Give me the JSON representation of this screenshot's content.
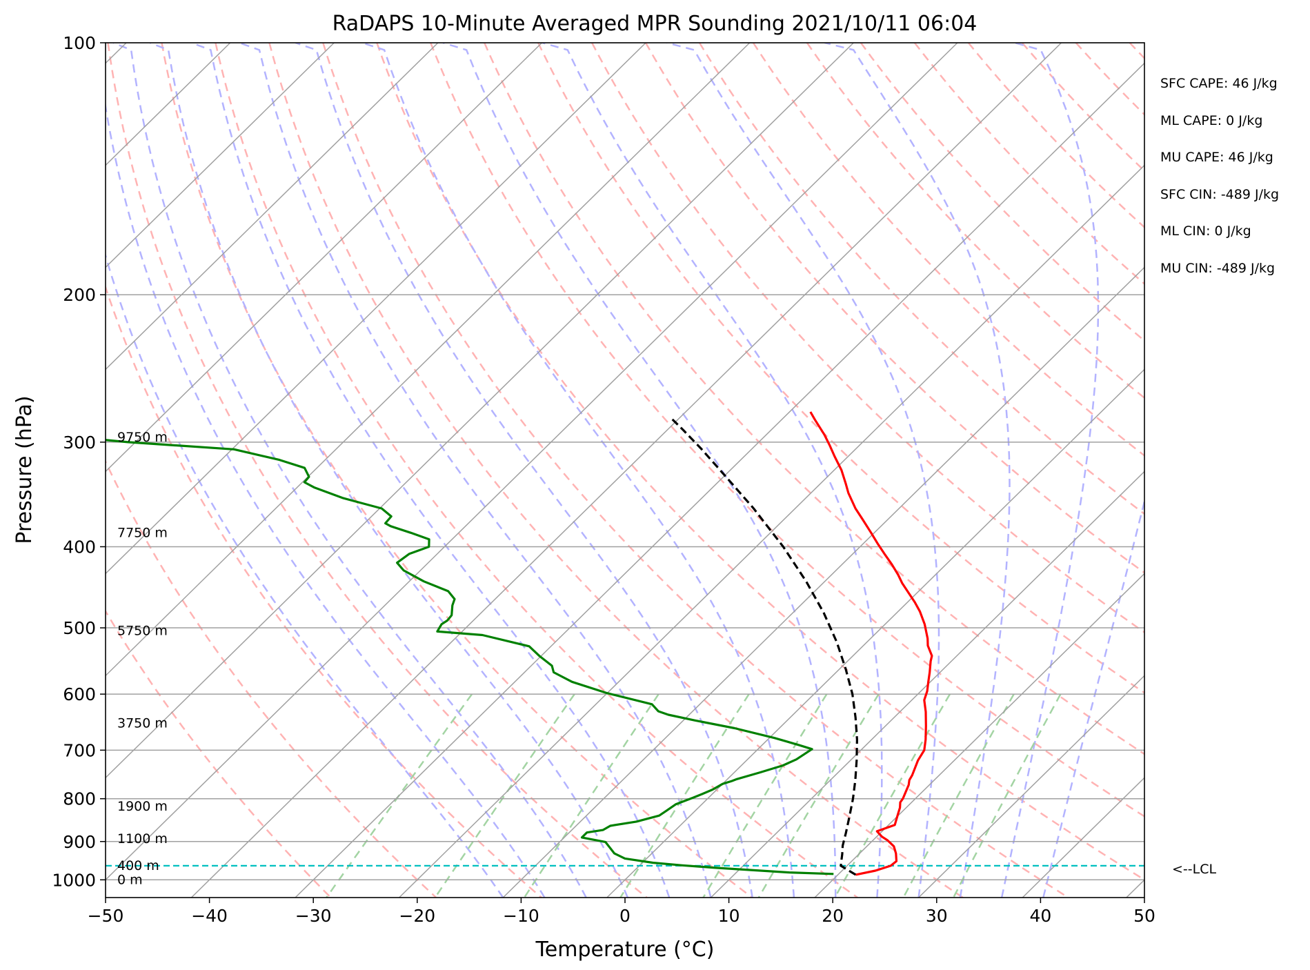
{
  "chart_data": {
    "type": "line",
    "title": "RaDAPS 10-Minute Averaged MPR Sounding 2021/10/11 06:04",
    "xlabel": "Temperature (°C)",
    "ylabel": "Pressure (hPa)",
    "xlim": [
      -50,
      50
    ],
    "ylim": [
      1050,
      100
    ],
    "y_scale": "log",
    "skew_per_decade_c": 82,
    "x_ticks": [
      "−50",
      "−40",
      "−30",
      "−20",
      "−10",
      "0",
      "10",
      "20",
      "30",
      "40",
      "50"
    ],
    "x_tick_values": [
      -50,
      -40,
      -30,
      -20,
      -10,
      0,
      10,
      20,
      30,
      40,
      50
    ],
    "y_ticks": [
      "1000",
      "900",
      "800",
      "700",
      "600",
      "500",
      "400",
      "300",
      "200",
      "100"
    ],
    "y_tick_values": [
      1000,
      900,
      800,
      700,
      600,
      500,
      400,
      300,
      200,
      100
    ],
    "grid": true,
    "series": [
      {
        "role": "temperature",
        "color": "#ff0000",
        "style": "solid",
        "points": [
          [
            21.7,
            986
          ],
          [
            23.2,
            975
          ],
          [
            24.2,
            962
          ],
          [
            24.3,
            950
          ],
          [
            23.5,
            930
          ],
          [
            22.6,
            912
          ],
          [
            21.4,
            897
          ],
          [
            20.5,
            888
          ],
          [
            19.5,
            875
          ],
          [
            20.6,
            860
          ],
          [
            20.0,
            840
          ],
          [
            19.7,
            830
          ],
          [
            19.4,
            820
          ],
          [
            18.9,
            808
          ],
          [
            18.8,
            800
          ],
          [
            18.0,
            770
          ],
          [
            17.6,
            760
          ],
          [
            17.4,
            750
          ],
          [
            16.5,
            720
          ],
          [
            16.1,
            700
          ],
          [
            15.2,
            680
          ],
          [
            13.9,
            655
          ],
          [
            12.5,
            630
          ],
          [
            11.2,
            610
          ],
          [
            10.6,
            595
          ],
          [
            9.8,
            580
          ],
          [
            9.0,
            565
          ],
          [
            8.0,
            548
          ],
          [
            7.6,
            540
          ],
          [
            6.2,
            525
          ],
          [
            5.5,
            515
          ],
          [
            3.8,
            495
          ],
          [
            2.1,
            478
          ],
          [
            0.7,
            466
          ],
          [
            -0.7,
            455
          ],
          [
            -2.4,
            442
          ],
          [
            -3.6,
            432
          ],
          [
            -5.2,
            420
          ],
          [
            -6.8,
            409
          ],
          [
            -8.7,
            396
          ],
          [
            -10.3,
            385
          ],
          [
            -12.6,
            370
          ],
          [
            -14.2,
            360
          ],
          [
            -16.4,
            345
          ],
          [
            -17.6,
            336
          ],
          [
            -19.3,
            324
          ],
          [
            -21.3,
            312
          ],
          [
            -22.8,
            303
          ],
          [
            -24.4,
            294
          ],
          [
            -26.8,
            282
          ],
          [
            -28.0,
            276
          ]
        ]
      },
      {
        "role": "dewpoint",
        "color": "#008000",
        "style": "solid",
        "points": [
          [
            19.5,
            984
          ],
          [
            15.1,
            980
          ],
          [
            10.9,
            973
          ],
          [
            7.3,
            967
          ],
          [
            4.1,
            961
          ],
          [
            1.0,
            954
          ],
          [
            -2.1,
            943
          ],
          [
            -3.6,
            930
          ],
          [
            -5.6,
            901
          ],
          [
            -8.3,
            890
          ],
          [
            -8.3,
            878
          ],
          [
            -7.0,
            872
          ],
          [
            -6.7,
            862
          ],
          [
            -4.6,
            852
          ],
          [
            -3.0,
            838
          ],
          [
            -2.8,
            828
          ],
          [
            -2.5,
            812
          ],
          [
            -1.5,
            798
          ],
          [
            -1.0,
            790
          ],
          [
            -0.4,
            780
          ],
          [
            0.0,
            768
          ],
          [
            0.6,
            762
          ],
          [
            0.9,
            758
          ],
          [
            2.5,
            744
          ],
          [
            4.0,
            730
          ],
          [
            4.7,
            718
          ],
          [
            5.2,
            698
          ],
          [
            3.5,
            690
          ],
          [
            0.5,
            677
          ],
          [
            -4.3,
            659
          ],
          [
            -8.9,
            645
          ],
          [
            -12.0,
            635
          ],
          [
            -13.3,
            629
          ],
          [
            -14.6,
            617
          ],
          [
            -20.1,
            598
          ],
          [
            -24.5,
            580
          ],
          [
            -27.2,
            565
          ],
          [
            -28.0,
            555
          ],
          [
            -30.2,
            540
          ],
          [
            -32.1,
            526
          ],
          [
            -37.7,
            510
          ],
          [
            -42.4,
            505
          ],
          [
            -42.7,
            495
          ],
          [
            -42.5,
            490
          ],
          [
            -42.6,
            483
          ],
          [
            -43.5,
            470
          ],
          [
            -43.9,
            462
          ],
          [
            -45.3,
            452
          ],
          [
            -48.6,
            440
          ],
          [
            -51.6,
            427
          ],
          [
            -53.0,
            418
          ],
          [
            -52.7,
            408
          ],
          [
            -51.5,
            400
          ],
          [
            -52.2,
            392
          ],
          [
            -54.6,
            385
          ],
          [
            -57.2,
            378
          ],
          [
            -58.0,
            375
          ],
          [
            -58.1,
            368
          ],
          [
            -59.8,
            360
          ],
          [
            -64.5,
            350
          ],
          [
            -68.3,
            340
          ],
          [
            -69.8,
            335
          ],
          [
            -69.9,
            330
          ],
          [
            -71.2,
            322
          ],
          [
            -74.4,
            315
          ],
          [
            -79.8,
            306
          ],
          [
            -90.7,
            300
          ],
          [
            -97.4,
            295
          ],
          [
            -101.0,
            290
          ],
          [
            -102.7,
            285
          ],
          [
            -104.0,
            284
          ]
        ]
      },
      {
        "role": "parcel_profile",
        "color": "#000000",
        "style": "dashed",
        "points": [
          [
            21.7,
            986
          ],
          [
            19.4,
            962
          ],
          [
            19.0,
            950
          ],
          [
            18.4,
            932
          ],
          [
            17.6,
            910
          ],
          [
            16.7,
            880
          ],
          [
            15.4,
            840
          ],
          [
            14.0,
            800
          ],
          [
            12.4,
            760
          ],
          [
            10.6,
            720
          ],
          [
            8.6,
            680
          ],
          [
            6.3,
            640
          ],
          [
            3.7,
            600
          ],
          [
            0.6,
            560
          ],
          [
            -2.9,
            520
          ],
          [
            -7.0,
            480
          ],
          [
            -11.8,
            440
          ],
          [
            -17.4,
            400
          ],
          [
            -24.0,
            360
          ],
          [
            -31.8,
            320
          ],
          [
            -35.0,
            305
          ],
          [
            -38.5,
            290
          ],
          [
            -41.0,
            280
          ]
        ]
      }
    ],
    "lcl": {
      "pressure": 962,
      "label": "<--LCL",
      "color": "#00bfbf"
    },
    "height_labels": [
      {
        "text": "0 m",
        "pressure": 1000
      },
      {
        "text": "400 m",
        "pressure": 962
      },
      {
        "text": "1100 m",
        "pressure": 894
      },
      {
        "text": "1900 m",
        "pressure": 817
      },
      {
        "text": "3750 m",
        "pressure": 650
      },
      {
        "text": "5750 m",
        "pressure": 504
      },
      {
        "text": "7750 m",
        "pressure": 385
      },
      {
        "text": "9750 m",
        "pressure": 296
      }
    ],
    "background_lines": {
      "isotherm_color": "#a0a0a0",
      "dry_adiabat_color": "#ffb3b3",
      "moist_adiabat_color": "#b3b3ff",
      "mixing_ratio_color": "#a3d4a3"
    }
  },
  "indices": [
    "SFC CAPE: 46 J/kg",
    "ML CAPE: 0 J/kg",
    "MU CAPE: 46 J/kg",
    "SFC CIN: -489 J/kg",
    "ML CIN: 0 J/kg",
    "MU CIN: -489 J/kg"
  ]
}
